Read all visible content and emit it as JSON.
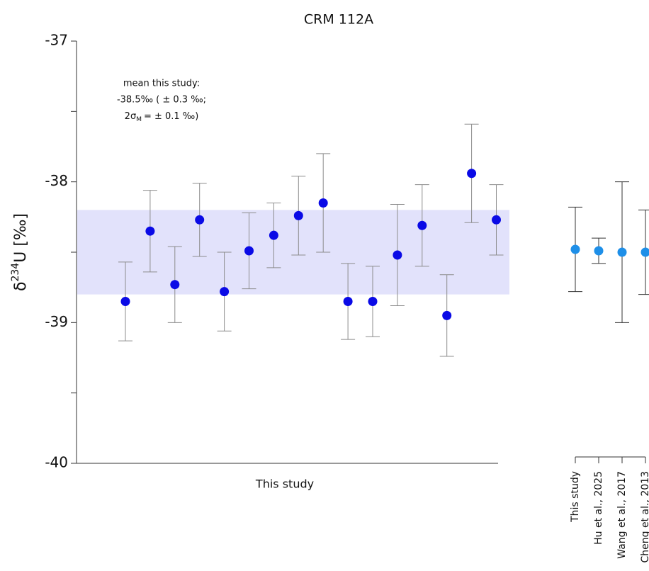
{
  "chart_data": [
    {
      "type": "errorbar",
      "title": "CRM 112A",
      "ylabel": {
        "prefix": "δ",
        "sup": "234",
        "rest": "U [‰]"
      },
      "xlabel": "This study",
      "annotation": [
        "mean this study:",
        "-38.5‰ ( ± 0.3 ‰;"
      ],
      "annotation_sigma": {
        "symbol": "2σ",
        "subscript": "M",
        "rest": "=  ± 0.1 ‰)"
      },
      "ylim": [
        -40,
        -37
      ],
      "yticks": [
        -40,
        -39,
        -38,
        -37
      ],
      "yticks_minor": [
        -39.5,
        -38.5,
        -37.5
      ],
      "band": [
        -38.8,
        -38.2
      ],
      "band_color": "#e2e2fb",
      "color": "#0a0ae6",
      "error_color": "#8c8c8c",
      "values": [
        -38.85,
        -38.35,
        -38.73,
        -38.27,
        -38.78,
        -38.49,
        -38.38,
        -38.24,
        -38.15,
        -38.85,
        -38.85,
        -38.52,
        -38.31,
        -38.95,
        -37.94,
        -38.27
      ],
      "errors": [
        0.28,
        0.29,
        0.27,
        0.26,
        0.28,
        0.27,
        0.23,
        0.28,
        0.35,
        0.27,
        0.25,
        0.36,
        0.29,
        0.29,
        0.35,
        0.25
      ]
    },
    {
      "type": "errorbar",
      "categories": [
        "This study",
        "Hu et al., 2025",
        "Wang et al., 2017",
        "Cheng et al., 2013"
      ],
      "ylim": [
        -40,
        -37
      ],
      "color": "#1e8fe8",
      "error_color": "#333333",
      "values": [
        -38.48,
        -38.49,
        -38.5,
        -38.5
      ],
      "errors": [
        0.3,
        0.09,
        0.5,
        0.3
      ]
    }
  ]
}
